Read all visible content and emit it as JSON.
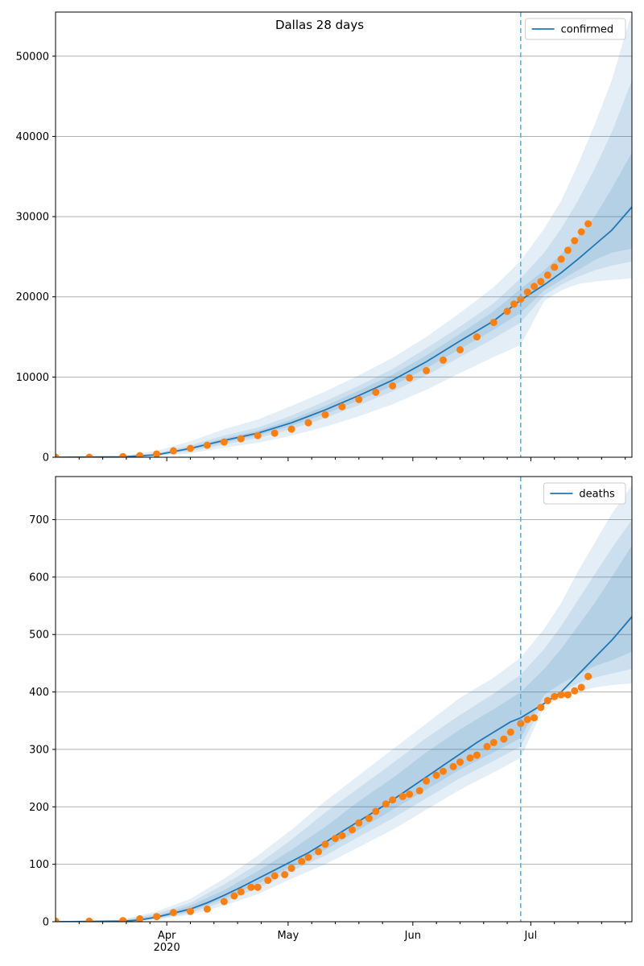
{
  "chart_data": [
    {
      "type": "line",
      "title": "Dallas 28 days",
      "xlabel": "",
      "ylabel": "",
      "xlim": [
        0,
        171
      ],
      "ylim": [
        0,
        55500
      ],
      "yticks": [
        0,
        10000,
        20000,
        30000,
        40000,
        50000
      ],
      "ytick_labels": [
        "0",
        "10000",
        "20000",
        "30000",
        "40000",
        "50000"
      ],
      "xtick_labels": [],
      "grid": true,
      "legend": {
        "position": "top-right",
        "entries": [
          "confirmed"
        ]
      },
      "forecast_start_day": 138,
      "colors": {
        "model": "#1f77b4",
        "observed": "#ff7f0e",
        "band": "#1f77b4",
        "divider": "#6baed6"
      },
      "series": [
        {
          "name": "confirmed",
          "role": "model",
          "x": [
            0,
            20,
            30,
            40,
            50,
            60,
            70,
            80,
            90,
            100,
            110,
            120,
            130,
            138,
            145,
            150,
            155,
            160,
            165,
            171
          ],
          "y": [
            0,
            50,
            300,
            1100,
            2100,
            3000,
            4300,
            5900,
            7700,
            9600,
            11900,
            14500,
            17000,
            19600,
            21500,
            23000,
            24700,
            26500,
            28300,
            31200
          ]
        },
        {
          "role": "band-outer",
          "x": [
            0,
            20,
            30,
            40,
            50,
            60,
            70,
            80,
            90,
            100,
            110,
            120,
            130,
            138,
            145,
            150,
            155,
            160,
            165,
            171
          ],
          "lower": [
            0,
            0,
            100,
            500,
            1200,
            1800,
            2700,
            3800,
            5100,
            6600,
            8400,
            10500,
            12500,
            14000,
            19500,
            20800,
            21600,
            21900,
            22100,
            22300
          ],
          "upper": [
            0,
            200,
            800,
            2000,
            3500,
            4700,
            6400,
            8200,
            10200,
            12400,
            15000,
            18000,
            21200,
            24500,
            28500,
            32000,
            36500,
            41500,
            47000,
            55500
          ]
        },
        {
          "role": "band-middle",
          "x": [
            0,
            20,
            30,
            40,
            50,
            60,
            70,
            80,
            90,
            100,
            110,
            120,
            130,
            138,
            145,
            150,
            155,
            160,
            165,
            171
          ],
          "lower": [
            0,
            10,
            170,
            750,
            1600,
            2400,
            3500,
            4900,
            6500,
            8200,
            10200,
            12500,
            14800,
            16800,
            20200,
            21500,
            22500,
            23300,
            23900,
            24400
          ],
          "upper": [
            0,
            120,
            500,
            1500,
            2700,
            3700,
            5200,
            7000,
            8900,
            11000,
            13600,
            16300,
            19200,
            22300,
            25500,
            28500,
            32000,
            36000,
            40500,
            47000
          ]
        },
        {
          "role": "band-inner",
          "x": [
            0,
            20,
            30,
            40,
            50,
            60,
            70,
            80,
            90,
            100,
            110,
            120,
            130,
            138,
            145,
            150,
            155,
            160,
            165,
            171
          ],
          "lower": [
            0,
            30,
            230,
            950,
            1850,
            2700,
            3900,
            5400,
            7100,
            8900,
            11100,
            13500,
            15900,
            18000,
            20800,
            22100,
            23300,
            24600,
            25500,
            26000
          ],
          "upper": [
            0,
            80,
            380,
            1250,
            2350,
            3300,
            4700,
            6400,
            8300,
            10300,
            12700,
            15400,
            18200,
            21000,
            23300,
            25300,
            27500,
            30000,
            33500,
            38000
          ]
        },
        {
          "name": "observed",
          "role": "observed",
          "x": [
            0,
            10,
            20,
            25,
            30,
            35,
            40,
            45,
            50,
            55,
            60,
            65,
            70,
            75,
            80,
            85,
            90,
            95,
            100,
            105,
            110,
            115,
            120,
            125,
            130,
            134,
            136,
            138,
            140,
            142,
            144,
            146,
            148,
            150,
            152,
            154,
            156,
            158
          ],
          "y": [
            0,
            0,
            80,
            200,
            400,
            800,
            1100,
            1500,
            1900,
            2300,
            2700,
            3000,
            3500,
            4300,
            5300,
            6300,
            7200,
            8100,
            8900,
            9900,
            10800,
            12100,
            13400,
            15000,
            16800,
            18200,
            19100,
            19700,
            20600,
            21300,
            21900,
            22700,
            23700,
            24700,
            25800,
            27000,
            28100,
            29100
          ]
        }
      ]
    },
    {
      "type": "line",
      "title": "",
      "xlabel": "",
      "ylabel": "",
      "xlim": [
        0,
        171
      ],
      "ylim": [
        0,
        775
      ],
      "yticks": [
        0,
        100,
        200,
        300,
        400,
        500,
        600,
        700
      ],
      "ytick_labels": [
        "0",
        "100",
        "200",
        "300",
        "400",
        "500",
        "600",
        "700"
      ],
      "xticks": [
        33,
        69,
        106,
        141
      ],
      "xtick_labels": [
        "Apr\n2020",
        "May",
        "Jun",
        "Jul"
      ],
      "grid": true,
      "legend": {
        "position": "top-right",
        "entries": [
          "deaths"
        ]
      },
      "forecast_start_day": 138,
      "colors": {
        "model": "#1f77b4",
        "observed": "#ff7f0e",
        "band": "#1f77b4",
        "divider": "#6baed6"
      },
      "series": [
        {
          "name": "deaths",
          "role": "model",
          "x": [
            0,
            20,
            25,
            30,
            35,
            40,
            45,
            50,
            55,
            60,
            65,
            70,
            75,
            80,
            85,
            90,
            95,
            100,
            105,
            110,
            115,
            120,
            125,
            130,
            135,
            138,
            145,
            150,
            155,
            160,
            165,
            171
          ],
          "y": [
            0,
            1,
            3,
            8,
            15,
            22,
            33,
            46,
            60,
            75,
            90,
            105,
            120,
            138,
            157,
            175,
            193,
            212,
            232,
            252,
            272,
            292,
            312,
            330,
            348,
            355,
            380,
            400,
            430,
            460,
            490,
            531
          ]
        },
        {
          "role": "band-outer",
          "x": [
            0,
            20,
            30,
            40,
            50,
            60,
            70,
            80,
            90,
            100,
            110,
            120,
            130,
            138,
            145,
            150,
            155,
            160,
            165,
            171
          ],
          "lower": [
            0,
            0,
            4,
            12,
            28,
            48,
            75,
            100,
            130,
            160,
            195,
            230,
            260,
            285,
            375,
            390,
            400,
            408,
            412,
            415
          ],
          "upper": [
            0,
            4,
            18,
            40,
            75,
            115,
            160,
            210,
            255,
            300,
            345,
            390,
            425,
            460,
            510,
            555,
            610,
            660,
            710,
            760
          ]
        },
        {
          "role": "band-middle",
          "x": [
            0,
            20,
            30,
            40,
            50,
            60,
            70,
            80,
            90,
            100,
            110,
            120,
            130,
            138,
            145,
            150,
            155,
            160,
            165,
            171
          ],
          "lower": [
            0,
            0,
            5,
            15,
            35,
            58,
            88,
            115,
            148,
            180,
            215,
            250,
            280,
            305,
            385,
            400,
            415,
            425,
            432,
            440
          ],
          "upper": [
            0,
            3,
            14,
            33,
            65,
            100,
            143,
            190,
            233,
            276,
            320,
            360,
            397,
            430,
            475,
            515,
            560,
            605,
            650,
            700
          ]
        },
        {
          "role": "band-inner",
          "x": [
            0,
            20,
            30,
            40,
            50,
            60,
            70,
            80,
            90,
            100,
            110,
            120,
            130,
            138,
            145,
            150,
            155,
            160,
            165,
            171
          ],
          "lower": [
            0,
            0,
            6,
            18,
            40,
            66,
            96,
            125,
            160,
            195,
            230,
            265,
            295,
            320,
            395,
            415,
            430,
            445,
            455,
            470
          ],
          "upper": [
            0,
            2,
            11,
            28,
            55,
            88,
            125,
            165,
            210,
            250,
            295,
            335,
            370,
            400,
            440,
            475,
            515,
            555,
            600,
            655
          ]
        },
        {
          "name": "observed",
          "role": "observed",
          "x": [
            0,
            10,
            20,
            25,
            30,
            35,
            40,
            45,
            50,
            53,
            55,
            58,
            60,
            63,
            65,
            68,
            70,
            73,
            75,
            78,
            80,
            83,
            85,
            88,
            90,
            93,
            95,
            98,
            100,
            103,
            105,
            108,
            110,
            113,
            115,
            118,
            120,
            123,
            125,
            128,
            130,
            133,
            135,
            138,
            140,
            142,
            144,
            146,
            148,
            150,
            152,
            154,
            156,
            158
          ],
          "y": [
            1,
            1,
            2,
            5,
            9,
            16,
            18,
            22,
            35,
            45,
            52,
            60,
            60,
            72,
            80,
            82,
            93,
            105,
            112,
            122,
            135,
            145,
            150,
            160,
            172,
            180,
            192,
            205,
            212,
            218,
            222,
            228,
            245,
            255,
            262,
            270,
            278,
            285,
            290,
            305,
            312,
            318,
            330,
            345,
            352,
            355,
            373,
            385,
            392,
            395,
            395,
            402,
            408,
            427
          ]
        }
      ]
    }
  ]
}
